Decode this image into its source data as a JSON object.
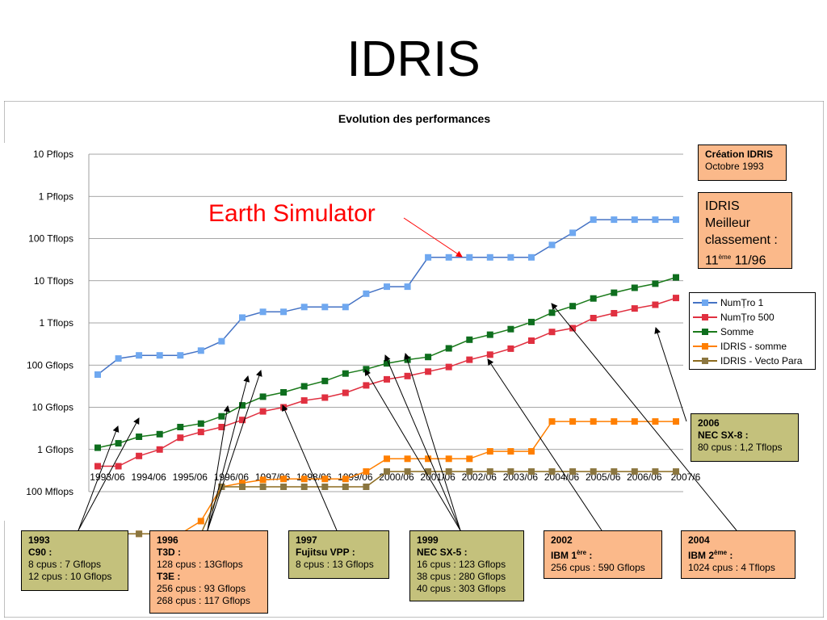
{
  "slide": {
    "title": "IDRIS"
  },
  "chart_data": {
    "type": "line",
    "title": "Evolution des performances",
    "yscale": "log",
    "ylim": [
      "100 Mflops",
      "10 Pflops"
    ],
    "yticks": [
      "10 Pflops",
      "1 Pflops",
      "100 Tflops",
      "10 Tflops",
      "1 Tflops",
      "100 Gflops",
      "10 Gflops",
      "1 Gflops",
      "100 Mflops"
    ],
    "xticks": [
      "1993/06",
      "1994/06",
      "1995/06",
      "1996/06",
      "1997/06",
      "1998/06",
      "1999/06",
      "2000/06",
      "2001/06",
      "2002/06",
      "2003/06",
      "2004/06",
      "2005/06",
      "2006/06",
      "2007/6"
    ],
    "x": [
      "1993/06",
      "1993/11",
      "1994/06",
      "1994/11",
      "1995/06",
      "1995/11",
      "1996/06",
      "1996/11",
      "1997/06",
      "1997/11",
      "1998/06",
      "1998/11",
      "1999/06",
      "1999/11",
      "2000/06",
      "2000/11",
      "2001/06",
      "2001/11",
      "2002/06",
      "2002/11",
      "2003/06",
      "2003/11",
      "2004/06",
      "2004/11",
      "2005/06",
      "2005/11",
      "2006/06",
      "2006/11",
      "2007/06"
    ],
    "grid": true,
    "legend_position": "right",
    "series": [
      {
        "name": "NumȚro 1",
        "color": "#4472c4",
        "marker_color": "#6fa8f0",
        "values": [
          59.7,
          143.4,
          170.4,
          170.4,
          170.4,
          220.4,
          368.2,
          1338,
          1830,
          1830,
          2379,
          2379,
          2379,
          4938,
          7226,
          7226,
          35860,
          35860,
          35860,
          35860,
          35860,
          35860,
          70720,
          136800,
          280600,
          280600,
          280600,
          280600,
          280600
        ]
      },
      {
        "name": "NumȚro 500",
        "color": "#e03040",
        "values": [
          0.4,
          0.4,
          0.7,
          1.0,
          1.9,
          2.6,
          3.4,
          5.0,
          8.0,
          10.0,
          14.5,
          17.0,
          22.0,
          33.0,
          46.0,
          55.0,
          70.0,
          90.0,
          134,
          177,
          245,
          380,
          610,
          750,
          1300,
          1700,
          2200,
          2700,
          3900
        ]
      },
      {
        "name": "Somme",
        "color": "#1a7a1a",
        "marker_color": "#0e6e1e",
        "values": [
          1.1,
          1.4,
          2.0,
          2.3,
          3.4,
          4.1,
          6.1,
          11.1,
          17.8,
          22.6,
          31.5,
          42.0,
          63.0,
          80.0,
          110,
          134,
          156,
          250,
          400,
          525,
          712,
          1050,
          1750,
          2500,
          3800,
          5200,
          6800,
          8500,
          12000
        ]
      },
      {
        "name": "IDRIS - somme",
        "color": "#ff7f00",
        "values": [
          0.007,
          0.01,
          0.01,
          0.01,
          0.01,
          0.02,
          0.13,
          0.16,
          0.19,
          0.2,
          0.2,
          0.2,
          0.2,
          0.3,
          0.6,
          0.6,
          0.6,
          0.6,
          0.6,
          0.9,
          0.9,
          0.9,
          4.6,
          4.6,
          4.6,
          4.6,
          4.6,
          4.6,
          4.6
        ]
      },
      {
        "name": "IDRIS - Vecto Para",
        "color": "#8b6a1e",
        "marker_color": "#8b7640",
        "values": [
          0.007,
          0.01,
          0.01,
          0.01,
          0.01,
          0.01,
          0.13,
          0.13,
          0.13,
          0.13,
          0.13,
          0.13,
          0.13,
          0.13,
          0.3,
          0.3,
          0.3,
          0.3,
          0.3,
          0.3,
          0.3,
          0.3,
          0.3,
          0.3,
          0.3,
          0.3,
          0.3,
          0.3,
          0.3
        ]
      }
    ],
    "annotations": {
      "earth_simulator": "Earth Simulator",
      "creation": {
        "title": "Création IDRIS",
        "text": "Octobre 1993"
      },
      "classement": {
        "line1": "IDRIS",
        "line2": "Meilleur",
        "line3": "classement :",
        "rank": "11",
        "rank_sup": "ème",
        "date": "11/96"
      },
      "y2006": {
        "year": "2006",
        "machine": "NEC SX-8 :",
        "detail": "80 cpus : 1,2 Tflops"
      },
      "y1993": {
        "year": "1993",
        "machine": "C90 :",
        "line1": "8 cpus : 7 Gflops",
        "line2": "12 cpus : 10 Gflops"
      },
      "y1996": {
        "year": "1996",
        "machine1": "T3D :",
        "line1": "128 cpus : 13Gflops",
        "machine2": "T3E :",
        "line2": "256 cpus : 93 Gflops",
        "line3": "268 cpus : 117 Gflops"
      },
      "y1997": {
        "year": "1997",
        "machine": "Fujitsu VPP :",
        "line1": "8 cpus : 13 Gflops"
      },
      "y1999": {
        "year": "1999",
        "machine": "NEC SX-5 :",
        "line1": "16 cpus : 123 Gflops",
        "line2": "38 cpus : 280 Gflops",
        "line3": "40 cpus : 303 Gflops"
      },
      "y2002": {
        "year": "2002",
        "machine_pre": "IBM 1",
        "machine_sup": "ère",
        "machine_post": " :",
        "line1": "256 cpus : 590 Gflops"
      },
      "y2004": {
        "year": "2004",
        "machine_pre": "IBM 2",
        "machine_sup": "ème",
        "machine_post": " :",
        "line1": "1024 cpus : 4 Tflops"
      }
    }
  }
}
